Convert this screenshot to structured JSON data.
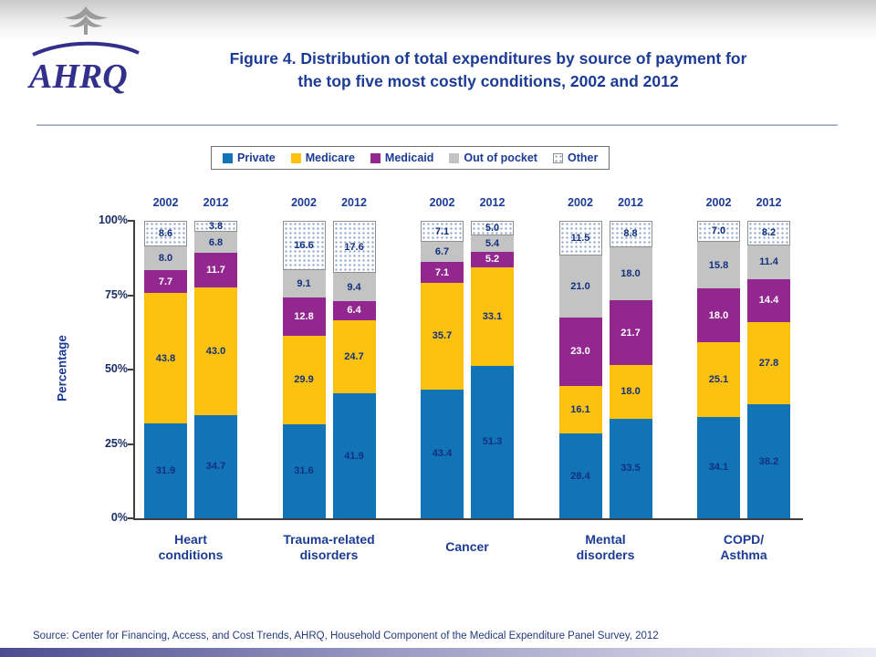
{
  "logo": {
    "text": "AHRQ"
  },
  "header": {
    "title_line1": "Figure 4. Distribution of total expenditures by source of payment for",
    "title_line2": "the top five most costly conditions, 2002 and 2012"
  },
  "footer": {
    "source": "Source: Center for Financing, Access, and Cost Trends, AHRQ, Household Component of the Medical Expenditure Panel Survey, 2012"
  },
  "chart_data": {
    "type": "bar",
    "stacked": true,
    "title": "Figure 4. Distribution of total expenditures by source of payment for the top five most costly conditions, 2002 and 2012",
    "ylabel": "Percentage",
    "ylim": [
      0,
      100
    ],
    "ytick_labels": [
      "100%",
      "75%",
      "50%",
      "25%",
      "0%"
    ],
    "legend_position": "top",
    "series": [
      {
        "name": "Private",
        "color": "#1273B7",
        "label_color": "#13307E"
      },
      {
        "name": "Medicare",
        "color": "#FDC110",
        "label_color": "#13307E"
      },
      {
        "name": "Medicaid",
        "color": "#92278F",
        "label_color": "#FFFFFF"
      },
      {
        "name": "Out of pocket",
        "color": "#C3C3C3",
        "label_color": "#13307E"
      },
      {
        "name": "Other",
        "color": "#FFFFFF",
        "pattern": "dots",
        "label_color": "#13307E"
      }
    ],
    "groups": [
      {
        "label_lines": [
          "Heart",
          "conditions"
        ],
        "bars": [
          {
            "year": "2002",
            "values": [
              31.9,
              43.8,
              7.7,
              8.0,
              8.6
            ]
          },
          {
            "year": "2012",
            "values": [
              34.7,
              43.0,
              11.7,
              6.8,
              3.8
            ]
          }
        ]
      },
      {
        "label_lines": [
          "Trauma-related",
          "disorders"
        ],
        "bars": [
          {
            "year": "2002",
            "values": [
              31.6,
              29.9,
              12.8,
              9.1,
              16.6
            ]
          },
          {
            "year": "2012",
            "values": [
              41.9,
              24.7,
              6.4,
              9.4,
              17.6
            ]
          }
        ]
      },
      {
        "label_lines": [
          "Cancer"
        ],
        "bars": [
          {
            "year": "2002",
            "values": [
              43.4,
              35.7,
              7.1,
              6.7,
              7.1
            ]
          },
          {
            "year": "2012",
            "values": [
              51.3,
              33.1,
              5.2,
              5.4,
              5.0
            ]
          }
        ]
      },
      {
        "label_lines": [
          "Mental",
          "disorders"
        ],
        "bars": [
          {
            "year": "2002",
            "values": [
              28.4,
              16.1,
              23.0,
              21.0,
              11.5
            ]
          },
          {
            "year": "2012",
            "values": [
              33.5,
              18.0,
              21.7,
              18.0,
              8.8
            ]
          }
        ]
      },
      {
        "label_lines": [
          "COPD/",
          "Asthma"
        ],
        "bars": [
          {
            "year": "2002",
            "values": [
              34.1,
              25.1,
              18.0,
              15.8,
              7.0
            ]
          },
          {
            "year": "2012",
            "values": [
              38.2,
              27.8,
              14.4,
              11.4,
              8.2
            ]
          }
        ]
      }
    ]
  }
}
